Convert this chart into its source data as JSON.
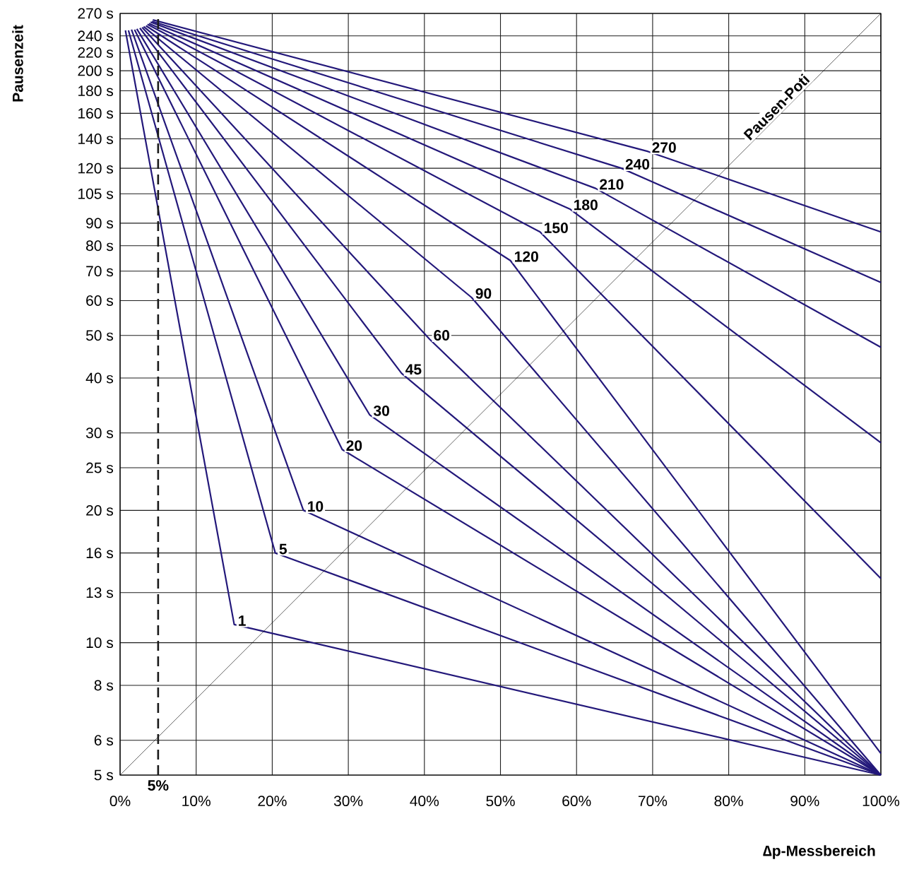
{
  "chart_data": {
    "type": "line",
    "xlabel": "∆p-Messbereich",
    "ylabel": "Pausenzeit",
    "xlim": [
      0,
      100
    ],
    "ylim": [
      5,
      270
    ],
    "log": "y",
    "grid": true,
    "marker": "none",
    "line_style": "solid",
    "xticks": [
      {
        "value": 0,
        "label": "0%"
      },
      {
        "value": 10,
        "label": "10%"
      },
      {
        "value": 20,
        "label": "20%"
      },
      {
        "value": 30,
        "label": "30%"
      },
      {
        "value": 40,
        "label": "40%"
      },
      {
        "value": 50,
        "label": "50%"
      },
      {
        "value": 60,
        "label": "60%"
      },
      {
        "value": 70,
        "label": "70%"
      },
      {
        "value": 80,
        "label": "80%"
      },
      {
        "value": 90,
        "label": "90%"
      },
      {
        "value": 100,
        "label": "100%"
      }
    ],
    "yticks": [
      {
        "value": 5,
        "label": "5 s"
      },
      {
        "value": 6,
        "label": "6 s"
      },
      {
        "value": 8,
        "label": "8 s"
      },
      {
        "value": 10,
        "label": "10 s"
      },
      {
        "value": 13,
        "label": "13 s"
      },
      {
        "value": 16,
        "label": "16 s"
      },
      {
        "value": 20,
        "label": "20 s"
      },
      {
        "value": 25,
        "label": "25 s"
      },
      {
        "value": 30,
        "label": "30 s"
      },
      {
        "value": 40,
        "label": "40 s"
      },
      {
        "value": 50,
        "label": "50 s"
      },
      {
        "value": 60,
        "label": "60 s"
      },
      {
        "value": 70,
        "label": "70 s"
      },
      {
        "value": 80,
        "label": "80 s"
      },
      {
        "value": 90,
        "label": "90 s"
      },
      {
        "value": 105,
        "label": "105 s"
      },
      {
        "value": 120,
        "label": "120 s"
      },
      {
        "value": 140,
        "label": "140 s"
      },
      {
        "value": 160,
        "label": "160 s"
      },
      {
        "value": 180,
        "label": "180 s"
      },
      {
        "value": 200,
        "label": "200 s"
      },
      {
        "value": 220,
        "label": "220 s"
      },
      {
        "value": 240,
        "label": "240 s"
      },
      {
        "value": 270,
        "label": "270 s"
      }
    ],
    "ref_lines": [
      {
        "axis": "x",
        "value": 5,
        "label": "5%",
        "color": "#1a1a1a",
        "line_style": "dashed"
      }
    ],
    "series": [
      {
        "name": "1",
        "color": "#23187a",
        "x": [
          0.7,
          15.0,
          100
        ],
        "values": [
          247,
          11,
          5
        ]
      },
      {
        "name": "5",
        "color": "#23187a",
        "x": [
          1.1,
          20.4,
          100
        ],
        "values": [
          247,
          16,
          5
        ]
      },
      {
        "name": "10",
        "color": "#23187a",
        "x": [
          1.5,
          24.1,
          100
        ],
        "values": [
          248,
          20,
          5
        ]
      },
      {
        "name": "20",
        "color": "#23187a",
        "x": [
          1.9,
          29.2,
          100
        ],
        "values": [
          248,
          27.5,
          5
        ]
      },
      {
        "name": "30",
        "color": "#23187a",
        "x": [
          2.2,
          32.8,
          100
        ],
        "values": [
          249,
          33,
          5
        ]
      },
      {
        "name": "45",
        "color": "#23187a",
        "x": [
          2.6,
          37.0,
          100
        ],
        "values": [
          250,
          41,
          5
        ]
      },
      {
        "name": "60",
        "color": "#23187a",
        "x": [
          2.9,
          40.7,
          100
        ],
        "values": [
          251,
          49,
          5
        ]
      },
      {
        "name": "90",
        "color": "#23187a",
        "x": [
          3.1,
          46.2,
          100
        ],
        "values": [
          252,
          61,
          5
        ]
      },
      {
        "name": "120",
        "color": "#23187a",
        "x": [
          3.4,
          51.3,
          100
        ],
        "values": [
          253,
          74,
          5.6
        ]
      },
      {
        "name": "150",
        "color": "#23187a",
        "x": [
          3.6,
          55.2,
          100
        ],
        "values": [
          255,
          86,
          14
        ]
      },
      {
        "name": "180",
        "color": "#23187a",
        "x": [
          3.8,
          59.1,
          100
        ],
        "values": [
          256,
          97,
          28.5
        ]
      },
      {
        "name": "210",
        "color": "#23187a",
        "x": [
          4.0,
          62.5,
          100
        ],
        "values": [
          258,
          108,
          47
        ]
      },
      {
        "name": "240",
        "color": "#23187a",
        "x": [
          4.2,
          65.9,
          100
        ],
        "values": [
          259,
          120,
          66
        ]
      },
      {
        "name": "270",
        "color": "#23187a",
        "x": [
          4.3,
          69.4,
          100
        ],
        "values": [
          261,
          131,
          86
        ]
      },
      {
        "name": "Pausen-Poti",
        "color": "#000000",
        "x": [
          0,
          100
        ],
        "values": [
          5,
          270
        ]
      }
    ]
  }
}
